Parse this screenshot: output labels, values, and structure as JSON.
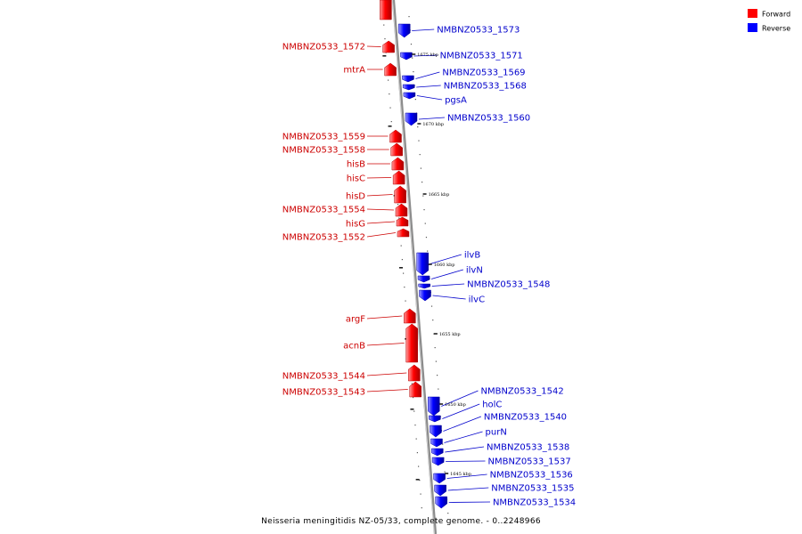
{
  "caption": "Neisseria meningitidis NZ-05/33, complete genome. - 0..2248966",
  "legend": [
    {
      "label": "Forward",
      "color": "#ff0000"
    },
    {
      "label": "Reverse",
      "color": "#0000ff"
    }
  ],
  "colors": {
    "forward_text": "#cc0000",
    "reverse_text": "#0000cc",
    "backbone": "#8c8c8c"
  },
  "forward_genes": [
    {
      "name": "",
      "labeled": false
    },
    {
      "name": "NMBNZ0533_1572",
      "labeled": true
    },
    {
      "name": "mtrA",
      "labeled": true
    },
    {
      "name": "NMBNZ0533_1559",
      "labeled": true
    },
    {
      "name": "NMBNZ0533_1558",
      "labeled": true
    },
    {
      "name": "hisB",
      "labeled": true
    },
    {
      "name": "hisC",
      "labeled": true
    },
    {
      "name": "hisD",
      "labeled": true
    },
    {
      "name": "NMBNZ0533_1554",
      "labeled": true
    },
    {
      "name": "hisG",
      "labeled": true
    },
    {
      "name": "NMBNZ0533_1552",
      "labeled": true
    },
    {
      "name": "argF",
      "labeled": true
    },
    {
      "name": "acnB",
      "labeled": true
    },
    {
      "name": "NMBNZ0533_1544",
      "labeled": true
    },
    {
      "name": "NMBNZ0533_1543",
      "labeled": true
    }
  ],
  "reverse_genes": [
    {
      "name": "NMBNZ0533_1573"
    },
    {
      "name": "NMBNZ0533_1571"
    },
    {
      "name": "NMBNZ0533_1569"
    },
    {
      "name": "NMBNZ0533_1568"
    },
    {
      "name": "pgsA"
    },
    {
      "name": "NMBNZ0533_1560"
    },
    {
      "name": "ilvB"
    },
    {
      "name": "ilvN"
    },
    {
      "name": "NMBNZ0533_1548"
    },
    {
      "name": "ilvC"
    },
    {
      "name": "NMBNZ0533_1542"
    },
    {
      "name": "holC"
    },
    {
      "name": "NMBNZ0533_1540"
    },
    {
      "name": "purN"
    },
    {
      "name": "NMBNZ0533_1538"
    },
    {
      "name": "NMBNZ0533_1537"
    },
    {
      "name": "NMBNZ0533_1536"
    },
    {
      "name": "NMBNZ0533_1535"
    },
    {
      "name": "NMBNZ0533_1534"
    }
  ],
  "kbp_markers": [
    {
      "label": "1675 kbp"
    },
    {
      "label": "1670 kbp"
    },
    {
      "label": "1665 kbp"
    },
    {
      "label": "1660 kbp"
    },
    {
      "label": "1655 kbp"
    },
    {
      "label": "1650 kbp"
    },
    {
      "label": "1645 kbp"
    }
  ]
}
